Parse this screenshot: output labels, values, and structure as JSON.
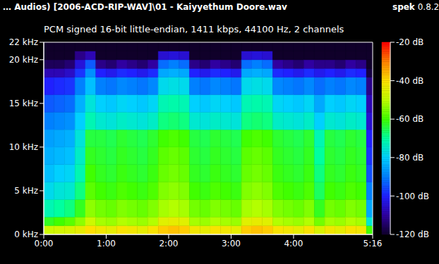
{
  "chart_data": {
    "type": "heatmap",
    "title": "… Audios) [2006-ACD-RIP-WAV]\\01 - Kaiyyethum Doore.wav",
    "annotation": "spek 0.8.2",
    "subtitle": "PCM signed 16-bit little-endian, 1411 kbps, 44100 Hz, 2 channels",
    "grid": false,
    "xlim": [
      0,
      316
    ],
    "xticks": [
      {
        "value": 0,
        "label": "0:00"
      },
      {
        "value": 60,
        "label": "1:00"
      },
      {
        "value": 120,
        "label": "2:00"
      },
      {
        "value": 180,
        "label": "3:00"
      },
      {
        "value": 240,
        "label": "4:00"
      },
      {
        "value": 316,
        "label": "5:16"
      }
    ],
    "ylim": [
      0,
      22
    ],
    "yticks": [
      {
        "value": 0,
        "label": "0 kHz"
      },
      {
        "value": 5,
        "label": "5 kHz"
      },
      {
        "value": 10,
        "label": "10 kHz"
      },
      {
        "value": 15,
        "label": "15 kHz"
      },
      {
        "value": 20,
        "label": "20 kHz"
      },
      {
        "value": 22,
        "label": "22 kHz"
      }
    ],
    "x_bins": [
      0,
      10,
      20,
      30,
      40,
      50,
      60,
      70,
      80,
      90,
      100,
      110,
      120,
      130,
      140,
      150,
      160,
      170,
      180,
      190,
      200,
      210,
      220,
      230,
      240,
      250,
      260,
      270,
      280,
      290,
      300,
      310,
      316
    ],
    "y_bins": [
      0,
      1,
      2,
      4,
      6,
      8,
      10,
      12,
      14,
      16,
      18,
      19,
      20,
      21,
      22
    ],
    "cells": [
      [
        -48,
        -62,
        -72,
        -78,
        -82,
        -84,
        -86,
        -90,
        -94,
        -100,
        -108,
        -116,
        -120,
        -120
      ],
      [
        -47,
        -60,
        -70,
        -76,
        -80,
        -83,
        -85,
        -89,
        -93,
        -99,
        -108,
        -116,
        -120,
        -120
      ],
      [
        -46,
        -58,
        -68,
        -75,
        -79,
        -82,
        -84,
        -88,
        -92,
        -98,
        -106,
        -114,
        -120,
        -120
      ],
      [
        -44,
        -54,
        -62,
        -68,
        -72,
        -74,
        -76,
        -80,
        -84,
        -90,
        -98,
        -104,
        -112,
        -120
      ],
      [
        -40,
        -48,
        -54,
        -58,
        -60,
        -62,
        -64,
        -72,
        -76,
        -82,
        -88,
        -94,
        -108,
        -120
      ],
      [
        -42,
        -52,
        -56,
        -60,
        -62,
        -63,
        -64,
        -75,
        -80,
        -90,
        -100,
        -112,
        -120,
        -120
      ],
      [
        -44,
        -53,
        -57,
        -61,
        -63,
        -64,
        -65,
        -76,
        -81,
        -91,
        -102,
        -114,
        -120,
        -120
      ],
      [
        -41,
        -51,
        -55,
        -59,
        -61,
        -62,
        -63,
        -74,
        -79,
        -89,
        -99,
        -110,
        -120,
        -120
      ],
      [
        -42,
        -52,
        -56,
        -60,
        -62,
        -63,
        -64,
        -75,
        -80,
        -90,
        -100,
        -112,
        -120,
        -120
      ],
      [
        -44,
        -53,
        -57,
        -61,
        -63,
        -64,
        -65,
        -76,
        -81,
        -91,
        -102,
        -114,
        -120,
        -120
      ],
      [
        -41,
        -51,
        -55,
        -59,
        -61,
        -62,
        -63,
        -74,
        -79,
        -89,
        -99,
        -110,
        -120,
        -120
      ],
      [
        -38,
        -45,
        -52,
        -55,
        -57,
        -58,
        -60,
        -68,
        -72,
        -78,
        -85,
        -92,
        -105,
        -120
      ],
      [
        -37,
        -44,
        -51,
        -54,
        -56,
        -57,
        -59,
        -67,
        -71,
        -77,
        -84,
        -90,
        -104,
        -120
      ],
      [
        -38,
        -45,
        -52,
        -55,
        -57,
        -58,
        -60,
        -68,
        -72,
        -78,
        -85,
        -92,
        -105,
        -120
      ],
      [
        -42,
        -52,
        -56,
        -60,
        -62,
        -63,
        -64,
        -75,
        -80,
        -90,
        -100,
        -112,
        -120,
        -120
      ],
      [
        -44,
        -53,
        -57,
        -61,
        -63,
        -64,
        -65,
        -76,
        -81,
        -91,
        -102,
        -114,
        -120,
        -120
      ],
      [
        -41,
        -51,
        -55,
        -59,
        -61,
        -62,
        -63,
        -74,
        -79,
        -89,
        -99,
        -110,
        -120,
        -120
      ],
      [
        -42,
        -52,
        -56,
        -60,
        -62,
        -63,
        -64,
        -75,
        -80,
        -90,
        -100,
        -112,
        -120,
        -120
      ],
      [
        -44,
        -53,
        -57,
        -61,
        -63,
        -64,
        -65,
        -76,
        -81,
        -91,
        -102,
        -114,
        -120,
        -120
      ],
      [
        -38,
        -45,
        -52,
        -55,
        -57,
        -58,
        -60,
        -68,
        -72,
        -78,
        -85,
        -92,
        -105,
        -120
      ],
      [
        -37,
        -44,
        -51,
        -54,
        -56,
        -57,
        -59,
        -67,
        -71,
        -77,
        -84,
        -90,
        -104,
        -120
      ],
      [
        -38,
        -45,
        -52,
        -55,
        -57,
        -58,
        -60,
        -68,
        -72,
        -78,
        -85,
        -92,
        -105,
        -120
      ],
      [
        -41,
        -51,
        -55,
        -59,
        -61,
        -62,
        -63,
        -74,
        -79,
        -89,
        -99,
        -110,
        -120,
        -120
      ],
      [
        -42,
        -52,
        -56,
        -60,
        -62,
        -63,
        -64,
        -75,
        -80,
        -90,
        -100,
        -112,
        -120,
        -120
      ],
      [
        -44,
        -53,
        -57,
        -61,
        -63,
        -64,
        -65,
        -76,
        -81,
        -91,
        -102,
        -114,
        -120,
        -120
      ],
      [
        -41,
        -51,
        -55,
        -59,
        -61,
        -62,
        -63,
        -74,
        -79,
        -89,
        -99,
        -110,
        -120,
        -120
      ],
      [
        -46,
        -56,
        -62,
        -66,
        -68,
        -70,
        -72,
        -80,
        -85,
        -92,
        -102,
        -112,
        -120,
        -120
      ],
      [
        -42,
        -52,
        -56,
        -60,
        -62,
        -63,
        -64,
        -75,
        -80,
        -90,
        -100,
        -112,
        -120,
        -120
      ],
      [
        -44,
        -53,
        -57,
        -61,
        -63,
        -64,
        -65,
        -76,
        -81,
        -91,
        -102,
        -114,
        -120,
        -120
      ],
      [
        -41,
        -51,
        -55,
        -59,
        -61,
        -62,
        -63,
        -74,
        -79,
        -89,
        -99,
        -110,
        -120,
        -120
      ],
      [
        -42,
        -52,
        -56,
        -60,
        -62,
        -63,
        -64,
        -75,
        -80,
        -90,
        -100,
        -112,
        -120,
        -120
      ],
      [
        -60,
        -75,
        -85,
        -90,
        -95,
        -98,
        -100,
        -105,
        -108,
        -112,
        -118,
        -120,
        -120,
        -120
      ]
    ],
    "colorbar": {
      "range": [
        -120,
        -20
      ],
      "ticks": [
        {
          "value": -20,
          "label": "-20 dB"
        },
        {
          "value": -40,
          "label": "-40 dB"
        },
        {
          "value": -60,
          "label": "-60 dB"
        },
        {
          "value": -80,
          "label": "-80 dB"
        },
        {
          "value": -100,
          "label": "-100 dB"
        },
        {
          "value": -120,
          "label": "-120 dB"
        }
      ]
    }
  }
}
